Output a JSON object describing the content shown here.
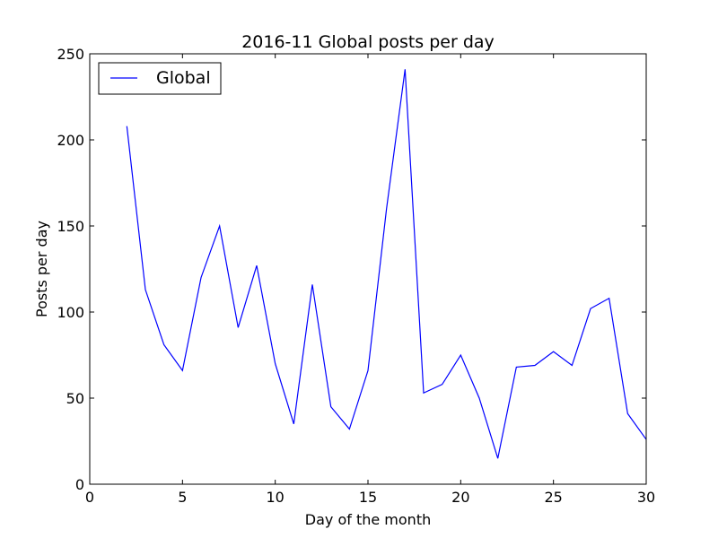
{
  "chart_data": {
    "type": "line",
    "title": "2016-11 Global posts per day",
    "xlabel": "Day of the month",
    "ylabel": "Posts per day",
    "xlim": [
      0,
      30
    ],
    "ylim": [
      0,
      250
    ],
    "xticks": [
      0,
      5,
      10,
      15,
      20,
      25,
      30
    ],
    "yticks": [
      0,
      50,
      100,
      150,
      200,
      250
    ],
    "grid": false,
    "legend_position": "top-left",
    "series": [
      {
        "name": "Global",
        "color": "#0000ff",
        "x": [
          2,
          3,
          4,
          5,
          6,
          7,
          8,
          9,
          10,
          11,
          12,
          13,
          14,
          15,
          16,
          17,
          18,
          19,
          20,
          21,
          22,
          23,
          24,
          25,
          26,
          27,
          28,
          29,
          30
        ],
        "y": [
          208,
          113,
          81,
          66,
          120,
          150,
          91,
          127,
          70,
          35,
          116,
          45,
          32,
          66,
          160,
          241,
          53,
          58,
          75,
          50,
          15,
          68,
          69,
          77,
          69,
          102,
          108,
          41,
          26
        ]
      }
    ]
  }
}
